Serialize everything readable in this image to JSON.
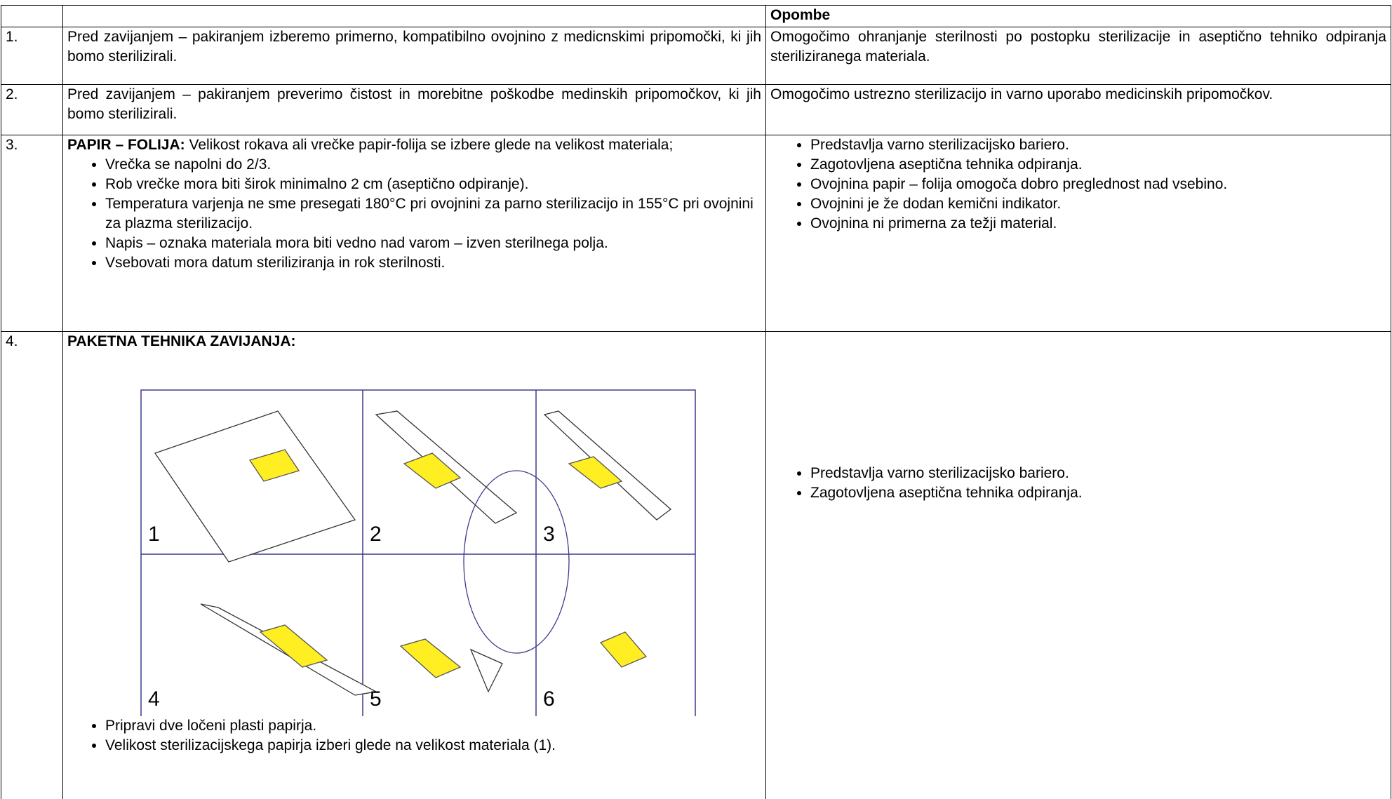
{
  "table": {
    "header": {
      "notes": "Opombe"
    },
    "rows": [
      {
        "number": "1.",
        "text": "Pred zavijanjem – pakiranjem izberemo primerno, kompatibilno ovojnino z medicnskimi pripomočki, ki jih bomo sterilizirali.",
        "note": "Omogočimo ohranjanje sterilnosti po postopku sterilizacije in aseptično tehniko odpiranja steriliziranega materiala."
      },
      {
        "number": "2.",
        "text": "Pred zavijanjem – pakiranjem preverimo čistost in morebitne poškodbe  medinskih pripomočkov, ki jih bomo sterilizirali.",
        "note": "Omogočimo ustrezno sterilizacijo in varno uporabo medicinskih pripomočkov."
      },
      {
        "number": "3.",
        "lead": "PAPIR – FOLIJA:",
        "text": "Velikost rokava ali vrečke papir-folija se izbere glede na velikost materiala;",
        "bullets": [
          "Vrečka se napolni do 2/3.",
          "Rob vrečke mora biti širok minimalno 2 cm (aseptično odpiranje).",
          "Temperatura varjenja  ne sme presegati 180°C pri ovojnini za parno sterilizacijo in 155°C pri ovojnini za plazma sterilizacijo.",
          "Napis – oznaka materiala mora biti vedno nad varom – izven sterilnega polja.",
          "Vsebovati mora datum steriliziranja in rok sterilnosti."
        ],
        "note_bullets": [
          "Predstavlja varno sterilizacijsko bariero.",
          "Zagotovljena aseptična tehnika odpiranja.",
          "Ovojnina papir – folija omogoča dobro preglednost nad vsebino.",
          "Ovojnini je že dodan kemični indikator.",
          "Ovojnina ni primerna za težji material."
        ]
      },
      {
        "number": "4.",
        "lead": "PAKETNA TEHNIKA ZAVIJANJA:",
        "figure_labels": [
          "1",
          "2",
          "3",
          "4",
          "5",
          "6"
        ],
        "bullets": [
          "Pripravi dve ločeni plasti papirja.",
          "Velikost sterilizacijskega papirja izberi glede na velikost materiala (1)."
        ],
        "note_bullets": [
          "Predstavlja varno sterilizacijsko bariero.",
          "Zagotovljena aseptična tehnika odpiranja."
        ]
      }
    ]
  }
}
